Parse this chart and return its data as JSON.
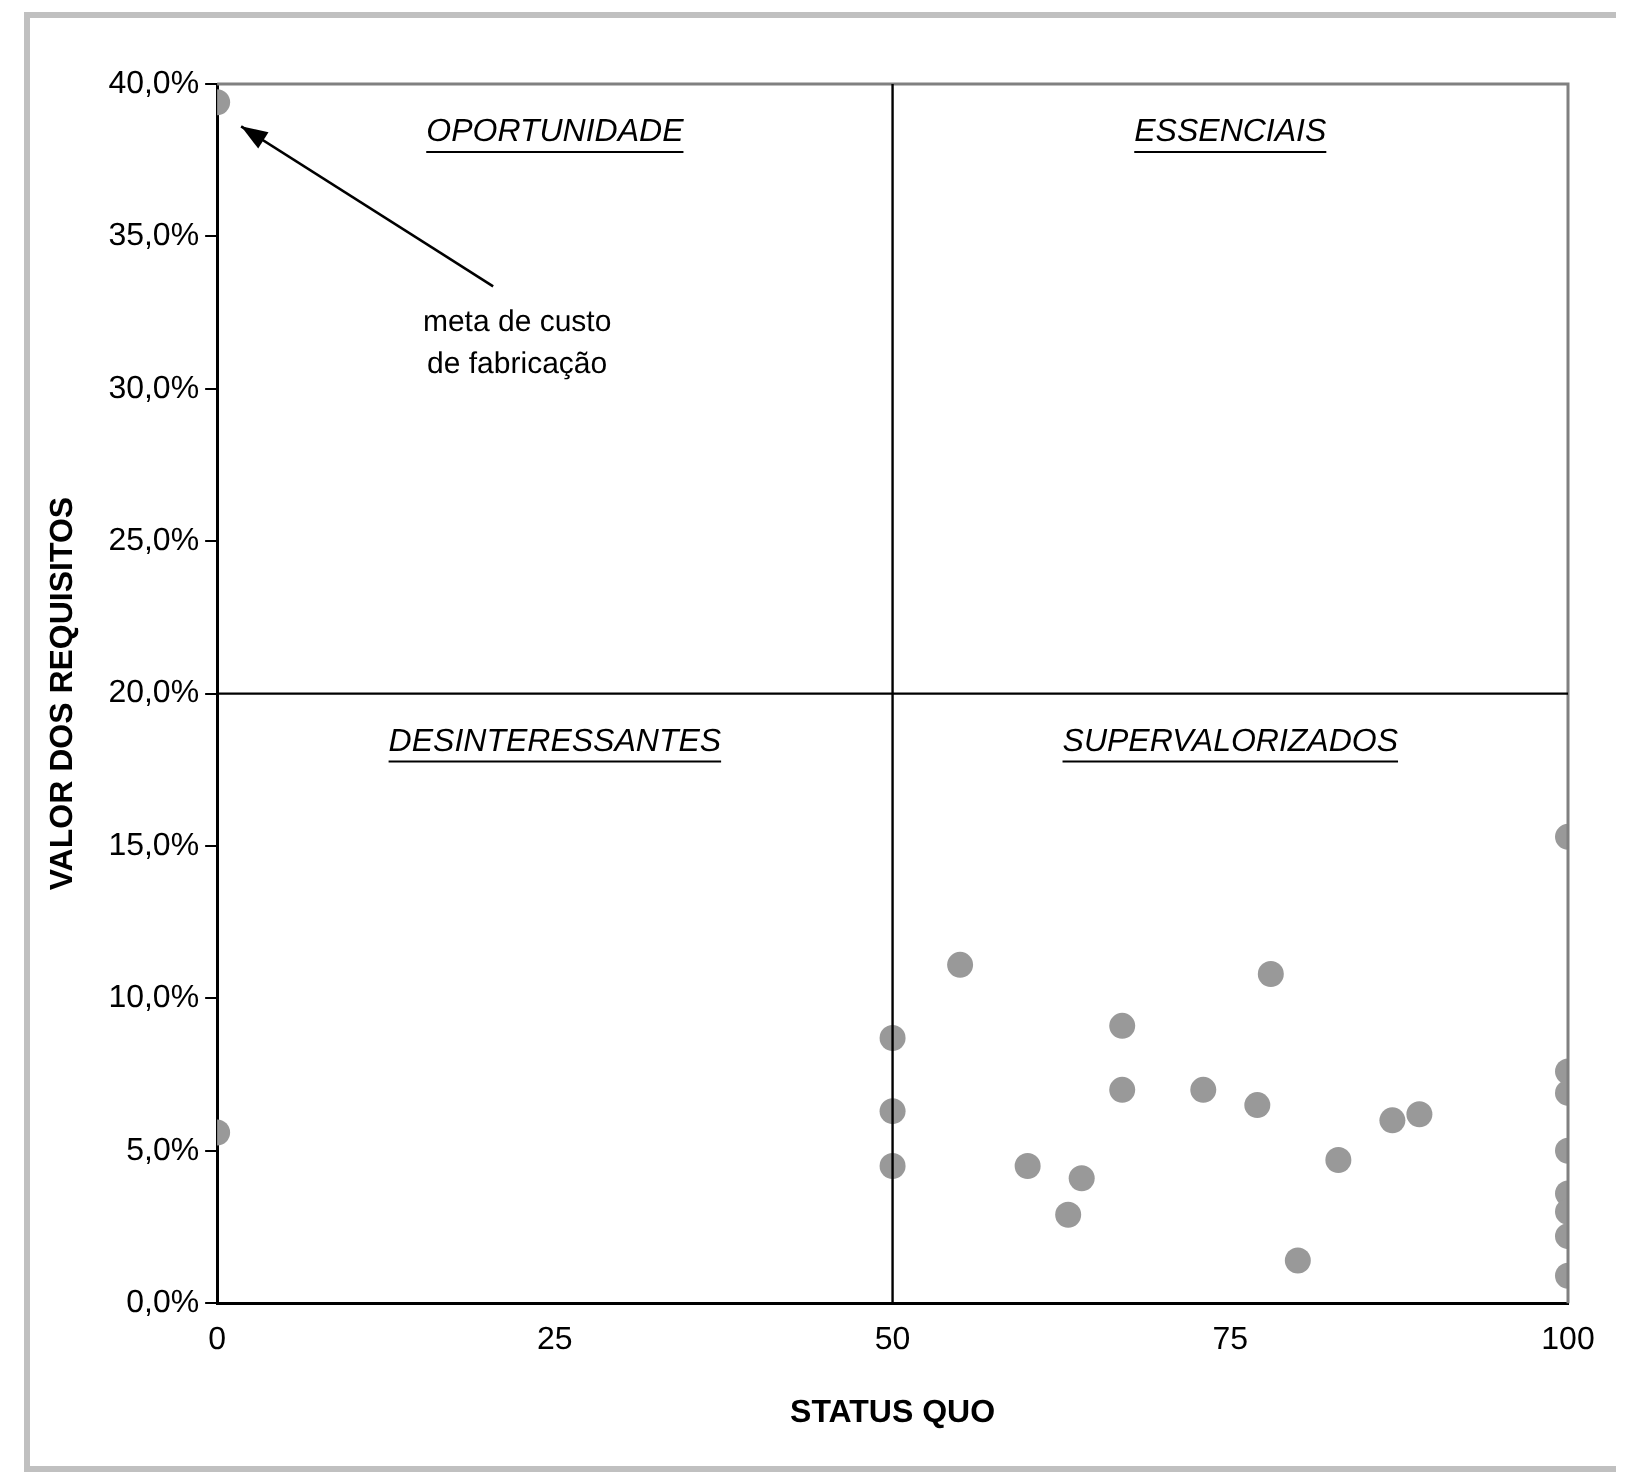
{
  "chart_data": {
    "type": "scatter",
    "xlabel": "STATUS QUO",
    "ylabel": "VALOR DOS REQUISITOS",
    "x": [
      0,
      0,
      50,
      50,
      50,
      55,
      60,
      63,
      64,
      67,
      67,
      73,
      77,
      78,
      80,
      83,
      87,
      89,
      100,
      100,
      100,
      100,
      100,
      100,
      100,
      100
    ],
    "values": [
      39.4,
      5.6,
      8.7,
      6.3,
      4.5,
      11.1,
      4.5,
      2.9,
      4.1,
      9.1,
      7.0,
      7.0,
      6.5,
      10.8,
      1.4,
      4.7,
      6.0,
      6.2,
      15.3,
      7.6,
      6.9,
      5.0,
      3.6,
      3.0,
      2.2,
      0.9
    ],
    "color": "#999999",
    "marker": "circle",
    "xlim": [
      0,
      100
    ],
    "xticks": [
      0,
      25,
      50,
      75,
      100
    ],
    "ylim": [
      0,
      40
    ],
    "yticks": [
      {
        "value": 0,
        "label": "0,0%"
      },
      {
        "value": 5,
        "label": "5,0%"
      },
      {
        "value": 10,
        "label": "10,0%"
      },
      {
        "value": 15,
        "label": "15,0%"
      },
      {
        "value": 20,
        "label": "20,0%"
      },
      {
        "value": 25,
        "label": "25,0%"
      },
      {
        "value": 30,
        "label": "30,0%"
      },
      {
        "value": 35,
        "label": "35,0%"
      },
      {
        "value": 40,
        "label": "40,0%"
      }
    ],
    "ref_lines": [
      {
        "axis": "x",
        "value": 50,
        "color": "#000000"
      },
      {
        "axis": "y",
        "value": 20,
        "color": "#000000"
      }
    ],
    "annotations": [
      "OPORTUNIDADE",
      "ESSENCIAIS",
      "DESINTERESSANTES",
      "SUPERVALORIZADOS",
      "meta de custo de fabricação"
    ],
    "grid": false,
    "legend": false
  }
}
